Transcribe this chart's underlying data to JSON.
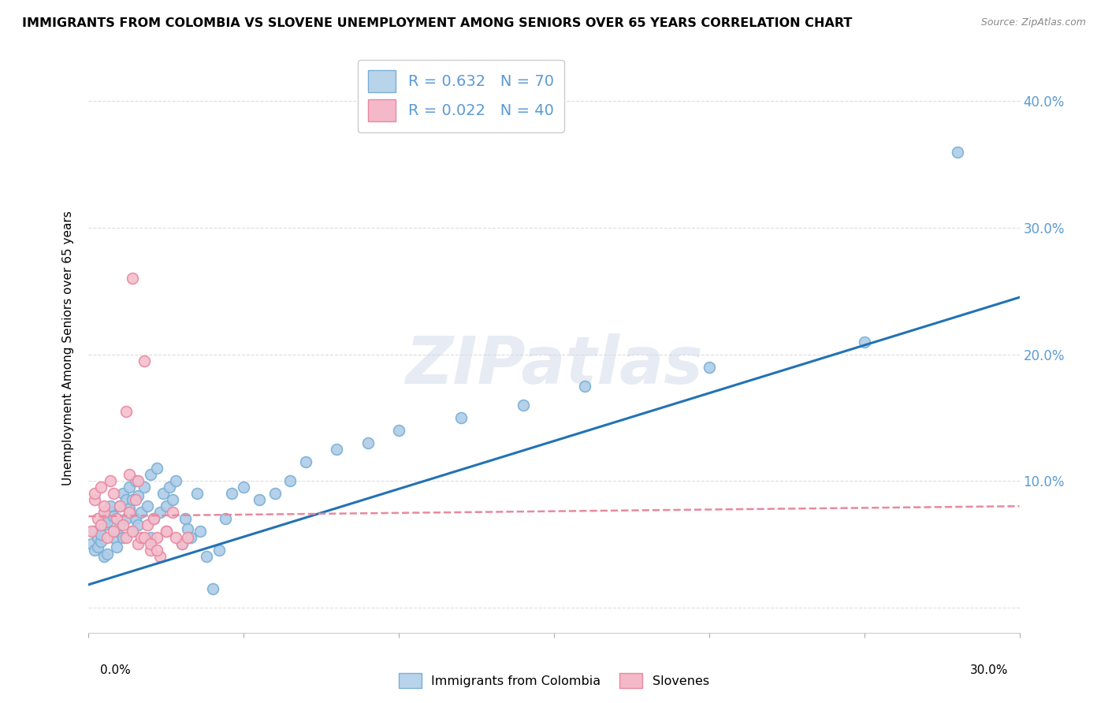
{
  "title": "IMMIGRANTS FROM COLOMBIA VS SLOVENE UNEMPLOYMENT AMONG SENIORS OVER 65 YEARS CORRELATION CHART",
  "source": "Source: ZipAtlas.com",
  "ylabel": "Unemployment Among Seniors over 65 years",
  "xlim": [
    0.0,
    0.3
  ],
  "ylim": [
    -0.02,
    0.43
  ],
  "ytick_vals": [
    0.0,
    0.1,
    0.2,
    0.3,
    0.4
  ],
  "ytick_labels": [
    "",
    "10.0%",
    "20.0%",
    "30.0%",
    "40.0%"
  ],
  "xtick_vals": [
    0.0,
    0.05,
    0.1,
    0.15,
    0.2,
    0.25,
    0.3
  ],
  "blue_R": 0.632,
  "blue_N": 70,
  "pink_R": 0.022,
  "pink_N": 40,
  "blue_color": "#aecce8",
  "blue_edge": "#7ab0d4",
  "pink_color": "#f5bfce",
  "pink_edge": "#e8899f",
  "blue_line_color": "#2272b5",
  "pink_line_color": "#e8899f",
  "legend_blue_face": "#b8d4ea",
  "legend_pink_face": "#f4b8c8",
  "label_color": "#5b9bd5",
  "blue_scatter_x": [
    0.001,
    0.002,
    0.002,
    0.003,
    0.003,
    0.004,
    0.004,
    0.005,
    0.005,
    0.005,
    0.006,
    0.006,
    0.007,
    0.007,
    0.008,
    0.008,
    0.009,
    0.009,
    0.01,
    0.01,
    0.011,
    0.011,
    0.012,
    0.012,
    0.013,
    0.013,
    0.014,
    0.014,
    0.015,
    0.015,
    0.016,
    0.016,
    0.017,
    0.018,
    0.019,
    0.02,
    0.02,
    0.021,
    0.022,
    0.023,
    0.024,
    0.025,
    0.026,
    0.027,
    0.028,
    0.03,
    0.031,
    0.032,
    0.033,
    0.035,
    0.036,
    0.038,
    0.04,
    0.042,
    0.044,
    0.046,
    0.05,
    0.055,
    0.06,
    0.065,
    0.07,
    0.08,
    0.09,
    0.1,
    0.12,
    0.14,
    0.16,
    0.2,
    0.25,
    0.28
  ],
  "blue_scatter_y": [
    0.05,
    0.045,
    0.06,
    0.055,
    0.048,
    0.052,
    0.058,
    0.04,
    0.065,
    0.07,
    0.042,
    0.068,
    0.075,
    0.08,
    0.055,
    0.072,
    0.06,
    0.048,
    0.08,
    0.065,
    0.09,
    0.055,
    0.085,
    0.07,
    0.095,
    0.078,
    0.06,
    0.085,
    0.1,
    0.07,
    0.065,
    0.088,
    0.075,
    0.095,
    0.08,
    0.055,
    0.105,
    0.07,
    0.11,
    0.075,
    0.09,
    0.08,
    0.095,
    0.085,
    0.1,
    0.05,
    0.07,
    0.062,
    0.055,
    0.09,
    0.06,
    0.04,
    0.015,
    0.045,
    0.07,
    0.09,
    0.095,
    0.085,
    0.09,
    0.1,
    0.115,
    0.125,
    0.13,
    0.14,
    0.15,
    0.16,
    0.175,
    0.19,
    0.21,
    0.36
  ],
  "pink_scatter_x": [
    0.001,
    0.002,
    0.002,
    0.003,
    0.004,
    0.004,
    0.005,
    0.005,
    0.006,
    0.007,
    0.008,
    0.008,
    0.009,
    0.01,
    0.011,
    0.012,
    0.013,
    0.014,
    0.015,
    0.016,
    0.017,
    0.018,
    0.019,
    0.02,
    0.021,
    0.022,
    0.023,
    0.025,
    0.027,
    0.03,
    0.012,
    0.013,
    0.014,
    0.016,
    0.018,
    0.02,
    0.022,
    0.025,
    0.028,
    0.032
  ],
  "pink_scatter_y": [
    0.06,
    0.085,
    0.09,
    0.07,
    0.095,
    0.065,
    0.075,
    0.08,
    0.055,
    0.1,
    0.06,
    0.09,
    0.07,
    0.08,
    0.065,
    0.055,
    0.075,
    0.06,
    0.085,
    0.05,
    0.055,
    0.195,
    0.065,
    0.045,
    0.07,
    0.055,
    0.04,
    0.06,
    0.075,
    0.05,
    0.155,
    0.105,
    0.26,
    0.1,
    0.055,
    0.05,
    0.045,
    0.06,
    0.055,
    0.055
  ],
  "blue_trend_x": [
    0.0,
    0.3
  ],
  "blue_trend_y": [
    0.018,
    0.245
  ],
  "pink_trend_x": [
    0.0,
    0.3
  ],
  "pink_trend_y": [
    0.072,
    0.08
  ],
  "watermark": "ZIPatlas",
  "marker_size": 100
}
